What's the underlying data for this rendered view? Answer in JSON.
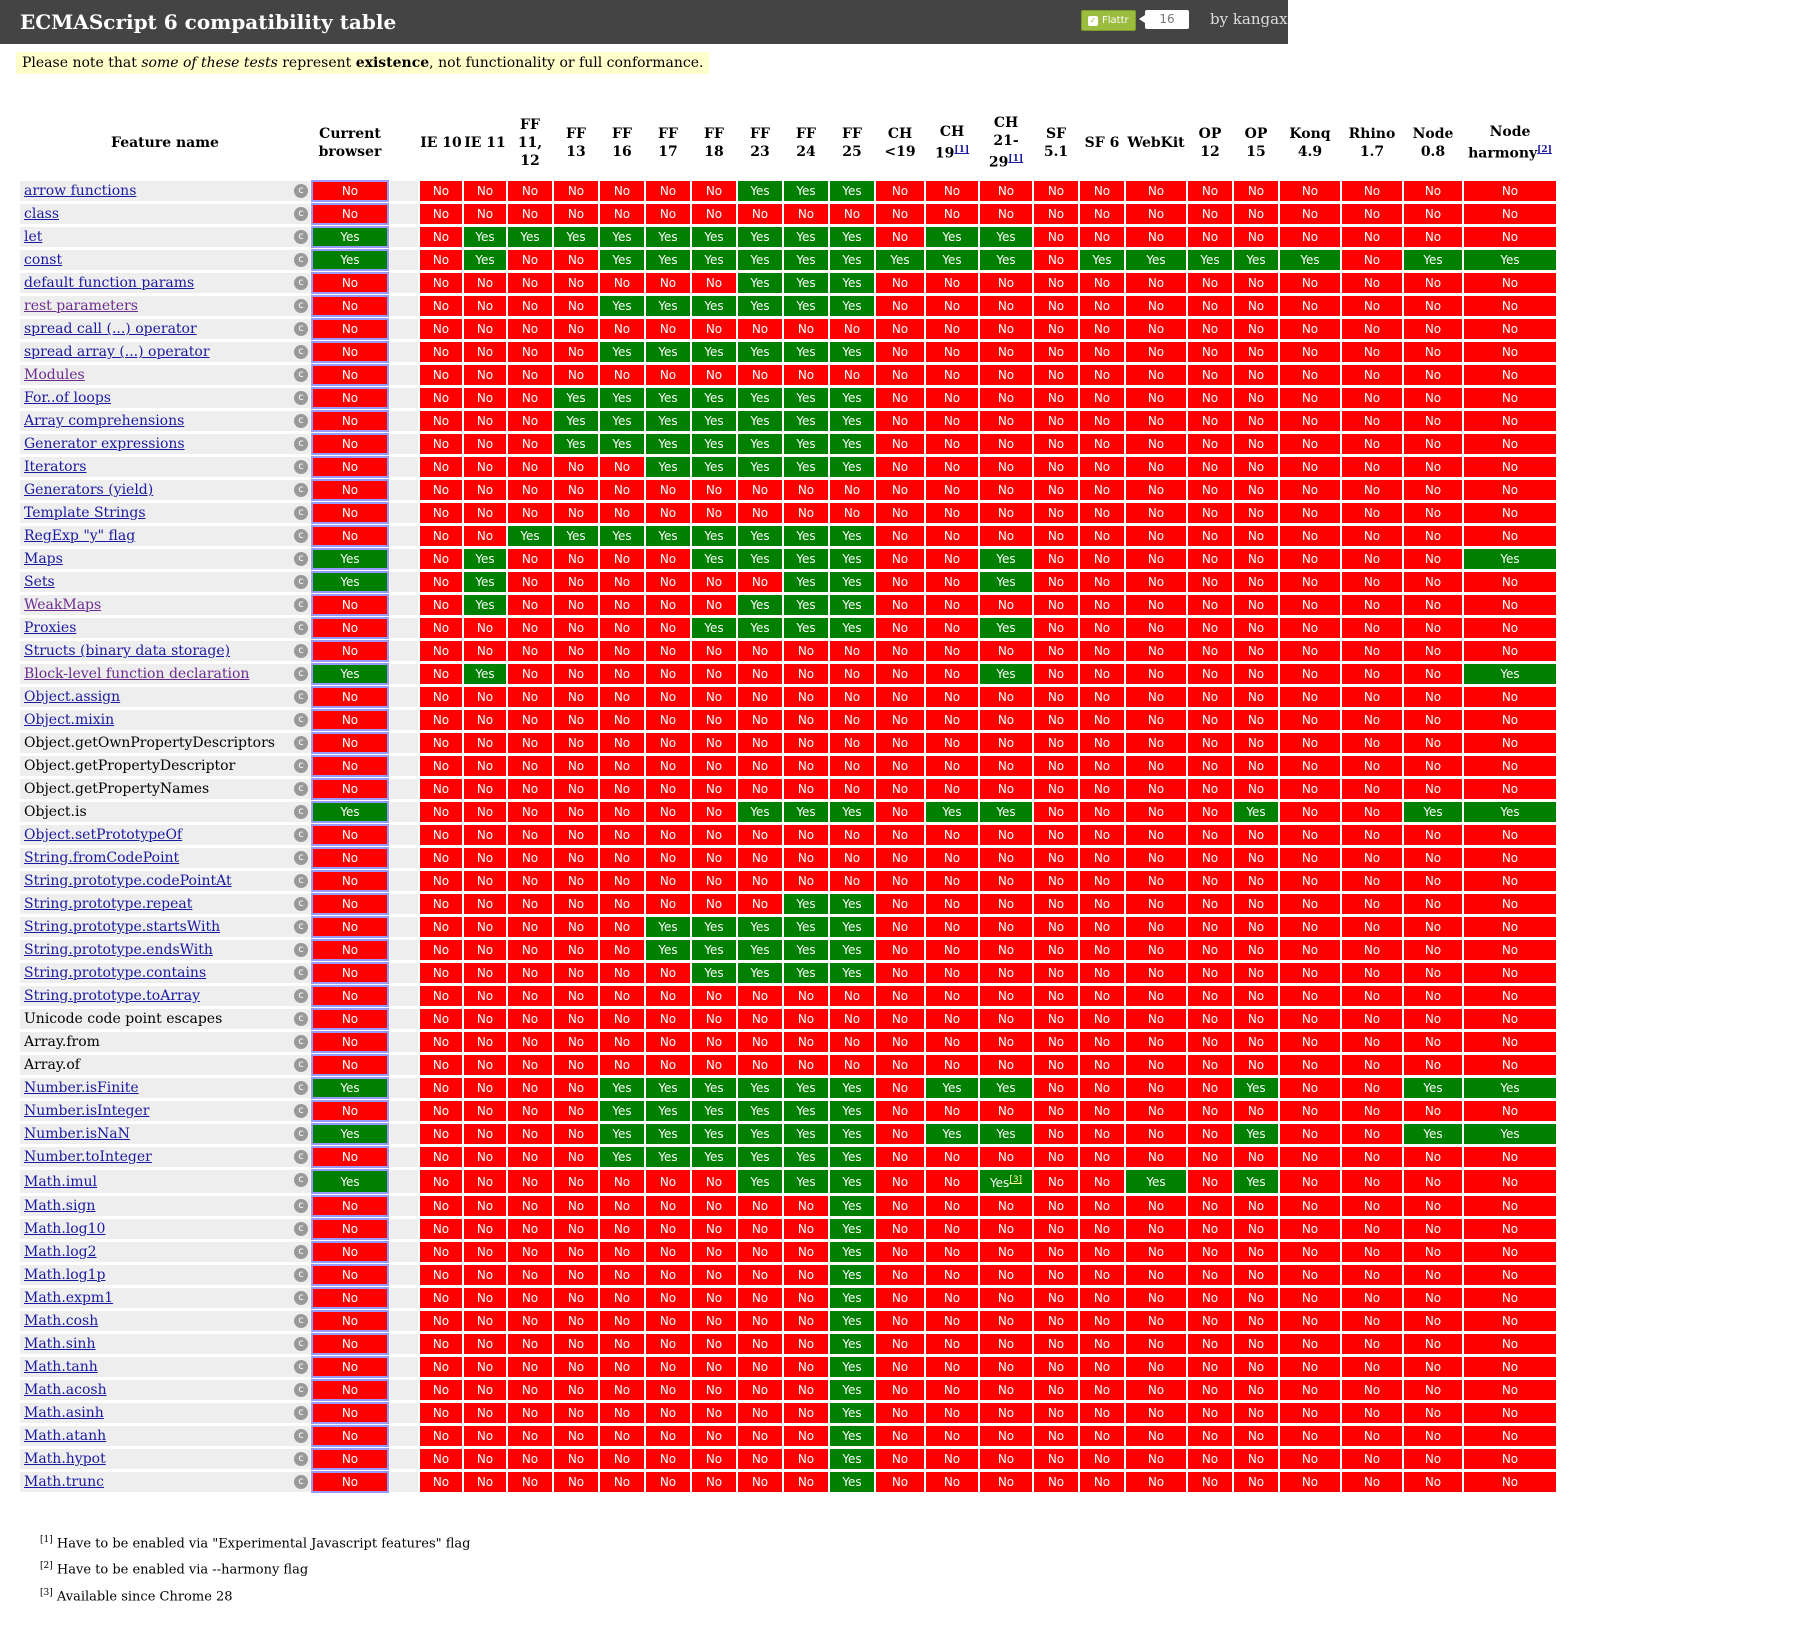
{
  "header": {
    "title": "ECMAScript 6 compatibility table",
    "flattr_label": "Flattr",
    "flattr_count": "16",
    "byline": "by kangax"
  },
  "note": {
    "prefix": "Please note that ",
    "italic": "some of these tests",
    "middle": " represent ",
    "bold": "existence",
    "suffix": ", not functionality or full conformance."
  },
  "columns": [
    {
      "label": "Current browser"
    },
    {
      "label": "IE 10"
    },
    {
      "label": "IE 11"
    },
    {
      "label": "FF 11, 12"
    },
    {
      "label": "FF 13"
    },
    {
      "label": "FF 16"
    },
    {
      "label": "FF 17"
    },
    {
      "label": "FF 18"
    },
    {
      "label": "FF 23"
    },
    {
      "label": "FF 24"
    },
    {
      "label": "FF 25"
    },
    {
      "label": "CH <19"
    },
    {
      "label": "CH 19",
      "sup": "[1]"
    },
    {
      "label": "CH 21-29",
      "sup": "[1]"
    },
    {
      "label": "SF 5.1"
    },
    {
      "label": "SF 6"
    },
    {
      "label": "WebKit"
    },
    {
      "label": "OP 12"
    },
    {
      "label": "OP 15"
    },
    {
      "label": "Konq 4.9"
    },
    {
      "label": "Rhino 1.7"
    },
    {
      "label": "Node 0.8"
    },
    {
      "label": "Node harmony",
      "sup": "[2]"
    }
  ],
  "feature_header": "Feature name",
  "yes_label": "Yes",
  "no_label": "No",
  "rows": [
    {
      "name": "arrow functions",
      "link": true,
      "cells": "NNNNNNNNYYYNNNNNNNNNNNN"
    },
    {
      "name": "class",
      "link": true,
      "cells": "NNNNNNNNNNNNNNNNNNNNNNN"
    },
    {
      "name": "let",
      "link": true,
      "cells": "YNYYYYYYYYYNYYNNNNNNNNN"
    },
    {
      "name": "const",
      "link": true,
      "cells": "YNYNNYYYYYYYYYNYYYYYNYY"
    },
    {
      "name": "default function params",
      "link": true,
      "cells": "NNNNNNNNYYYNNNNNNNNNNNN"
    },
    {
      "name": "rest parameters",
      "link": true,
      "visited": true,
      "cells": "NNNNNYYYYYYNNNNNNNNNNNN"
    },
    {
      "name": "spread call (...) operator",
      "link": true,
      "cells": "NNNNNNNNNNNNNNNNNNNNNNN"
    },
    {
      "name": "spread array (...) operator",
      "link": true,
      "cells": "NNNNNYYYYYYNNNNNNNNNNNN"
    },
    {
      "name": "Modules",
      "link": true,
      "visited": true,
      "cells": "NNNNNNNNNNNNNNNNNNNNNNN"
    },
    {
      "name": "For..of loops",
      "link": true,
      "cells": "NNNNYYYYYYYNNNNNNNNNNNN"
    },
    {
      "name": "Array comprehensions",
      "link": true,
      "cells": "NNNNYYYYYYYNNNNNNNNNNNN"
    },
    {
      "name": "Generator expressions",
      "link": true,
      "cells": "NNNNYYYYYYYNNNNNNNNNNNN"
    },
    {
      "name": "Iterators",
      "link": true,
      "cells": "NNNNNNYYYYYNNNNNNNNNNNN"
    },
    {
      "name": "Generators (yield)",
      "link": true,
      "cells": "NNNNNNNNNNNNNNNNNNNNNNN"
    },
    {
      "name": "Template Strings",
      "link": true,
      "cells": "NNNNNNNNNNNNNNNNNNNNNNN"
    },
    {
      "name": "RegExp \"y\" flag",
      "link": true,
      "cells": "NNNYYYYYYYYNNNNNNNNNNNN"
    },
    {
      "name": "Maps",
      "link": true,
      "cells": "YNYNNNNYYYYNNYNNNNNNNNY"
    },
    {
      "name": "Sets",
      "link": true,
      "cells": "YNYNNNNNNYYNNYNNNNNNNNN"
    },
    {
      "name": "WeakMaps",
      "link": true,
      "visited": true,
      "cells": "NNYNNNNNYYYNNNNNNNNNNNN"
    },
    {
      "name": "Proxies",
      "link": true,
      "cells": "NNNNNNNYYYYNNYNNNNNNNNN"
    },
    {
      "name": "Structs (binary data storage)",
      "link": true,
      "cells": "NNNNNNNNNNNNNNNNNNNNNNN"
    },
    {
      "name": "Block-level function declaration",
      "link": true,
      "visited": true,
      "cells": "YNYNNNNNNNNNNYNNNNNNNNY"
    },
    {
      "name": "Object.assign",
      "link": true,
      "cells": "NNNNNNNNNNNNNNNNNNNNNNN"
    },
    {
      "name": "Object.mixin",
      "link": true,
      "cells": "NNNNNNNNNNNNNNNNNNNNNNN"
    },
    {
      "name": "Object.getOwnPropertyDescriptors",
      "link": false,
      "cells": "NNNNNNNNNNNNNNNNNNNNNNN"
    },
    {
      "name": "Object.getPropertyDescriptor",
      "link": false,
      "cells": "NNNNNNNNNNNNNNNNNNNNNNN"
    },
    {
      "name": "Object.getPropertyNames",
      "link": false,
      "cells": "NNNNNNNNNNNNNNNNNNNNNNN"
    },
    {
      "name": "Object.is",
      "link": false,
      "cells": "YNNNNNNNYYYNYYNNNNYNNYY"
    },
    {
      "name": "Object.setPrototypeOf",
      "link": true,
      "cells": "NNNNNNNNNNNNNNNNNNNNNNN"
    },
    {
      "name": "String.fromCodePoint",
      "link": true,
      "cells": "NNNNNNNNNNNNNNNNNNNNNNN"
    },
    {
      "name": "String.prototype.codePointAt",
      "link": true,
      "cells": "NNNNNNNNNNNNNNNNNNNNNNN"
    },
    {
      "name": "String.prototype.repeat",
      "link": true,
      "cells": "NNNNNNNNNYYNNNNNNNNNNNN"
    },
    {
      "name": "String.prototype.startsWith",
      "link": true,
      "cells": "NNNNNNYYYYYNNNNNNNNNNNN"
    },
    {
      "name": "String.prototype.endsWith",
      "link": true,
      "cells": "NNNNNNYYYYYNNNNNNNNNNNN"
    },
    {
      "name": "String.prototype.contains",
      "link": true,
      "cells": "NNNNNNNYYYYNNNNNNNNNNNN"
    },
    {
      "name": "String.prototype.toArray",
      "link": true,
      "cells": "NNNNNNNNNNNNNNNNNNNNNNN"
    },
    {
      "name": "Unicode code point escapes",
      "link": false,
      "cells": "NNNNNNNNNNNNNNNNNNNNNNN"
    },
    {
      "name": "Array.from",
      "link": false,
      "cells": "NNNNNNNNNNNNNNNNNNNNNNN"
    },
    {
      "name": "Array.of",
      "link": false,
      "cells": "NNNNNNNNNNNNNNNNNNNNNNN"
    },
    {
      "name": "Number.isFinite",
      "link": true,
      "cells": "YNNNNYYYYYYNYYNNNNYNNYY"
    },
    {
      "name": "Number.isInteger",
      "link": true,
      "cells": "NNNNNYYYYYYNNNNNNNNNNNN"
    },
    {
      "name": "Number.isNaN",
      "link": true,
      "cells": "YNNNNYYYYYYNYYNNNNYNNYY"
    },
    {
      "name": "Number.toInteger",
      "link": true,
      "cells": "NNNNNYYYYYYNNNNNNNNNNNN"
    },
    {
      "name": "Math.imul",
      "link": true,
      "cells": "YNNNNNNNYYYNNYNNYNYNNNN",
      "note": {
        "col": 13,
        "sup": "[3]"
      }
    },
    {
      "name": "Math.sign",
      "link": true,
      "cells": "NNNNNNNNNNYNNNNNNNNNNNN"
    },
    {
      "name": "Math.log10",
      "link": true,
      "cells": "NNNNNNNNNNYNNNNNNNNNNNN"
    },
    {
      "name": "Math.log2",
      "link": true,
      "cells": "NNNNNNNNNNYNNNNNNNNNNNN"
    },
    {
      "name": "Math.log1p",
      "link": true,
      "cells": "NNNNNNNNNNYNNNNNNNNNNNN"
    },
    {
      "name": "Math.expm1",
      "link": true,
      "cells": "NNNNNNNNNNYNNNNNNNNNNNN"
    },
    {
      "name": "Math.cosh",
      "link": true,
      "cells": "NNNNNNNNNNYNNNNNNNNNNNN"
    },
    {
      "name": "Math.sinh",
      "link": true,
      "cells": "NNNNNNNNNNYNNNNNNNNNNNN"
    },
    {
      "name": "Math.tanh",
      "link": true,
      "cells": "NNNNNNNNNNYNNNNNNNNNNNN"
    },
    {
      "name": "Math.acosh",
      "link": true,
      "cells": "NNNNNNNNNNYNNNNNNNNNNNN"
    },
    {
      "name": "Math.asinh",
      "link": true,
      "cells": "NNNNNNNNNNYNNNNNNNNNNNN"
    },
    {
      "name": "Math.atanh",
      "link": true,
      "cells": "NNNNNNNNNNYNNNNNNNNNNNN"
    },
    {
      "name": "Math.hypot",
      "link": true,
      "cells": "NNNNNNNNNNYNNNNNNNNNNNN"
    },
    {
      "name": "Math.trunc",
      "link": true,
      "cells": "NNNNNNNNNNYNNNNNNNNNNNN"
    }
  ],
  "footnotes": [
    {
      "mark": "[1]",
      "text": " Have to be enabled via \"Experimental Javascript features\" flag"
    },
    {
      "mark": "[2]",
      "text": " Have to be enabled via --harmony flag"
    },
    {
      "mark": "[3]",
      "text": " Available since Chrome 28"
    }
  ],
  "colors": {
    "yes": "#008000",
    "no": "#ff0000",
    "header_bg": "#444444",
    "note_bg": "#ffffcc"
  }
}
